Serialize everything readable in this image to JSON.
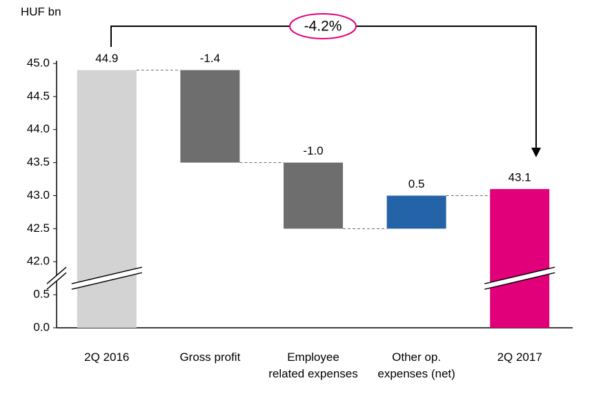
{
  "chart_data": {
    "type": "waterfall",
    "y_label": "HUF bn",
    "annotation": "-4.2%",
    "categories": [
      "2Q 2016",
      "Gross profit",
      "Employee related expenses",
      "Other op. expenses (net)",
      "2Q 2017"
    ],
    "values": [
      44.9,
      -1.4,
      -1.0,
      0.5,
      43.1
    ],
    "value_labels": [
      "44.9",
      "-1.4",
      "-1.0",
      "0.5",
      "43.1"
    ],
    "colors": [
      "#d3d3d3",
      "#6e6e6e",
      "#6e6e6e",
      "#2563a8",
      "#e2007a"
    ],
    "ylim": [
      0,
      45
    ],
    "yticks": [
      {
        "value": 0,
        "label": "0.0"
      },
      0.5,
      {
        "value": 42,
        "label": "42.0"
      },
      42.5,
      {
        "value": 43,
        "label": "43.0"
      },
      43.5,
      {
        "value": 44,
        "label": "44.0"
      },
      44.5,
      {
        "value": 45,
        "label": "45.0"
      }
    ]
  }
}
